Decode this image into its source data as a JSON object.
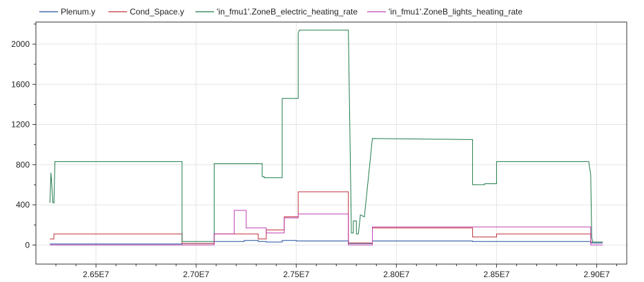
{
  "chart_data": {
    "type": "line",
    "title": "",
    "xlabel": "",
    "ylabel": "",
    "xlim": [
      26200000,
      29150000
    ],
    "ylim": [
      -190,
      2220
    ],
    "grid": true,
    "legend_position": "top",
    "x_ticks": [
      {
        "value": 26500000,
        "label": "2.65E7"
      },
      {
        "value": 27000000,
        "label": "2.70E7"
      },
      {
        "value": 27500000,
        "label": "2.75E7"
      },
      {
        "value": 28000000,
        "label": "2.80E7"
      },
      {
        "value": 28500000,
        "label": "2.85E7"
      },
      {
        "value": 29000000,
        "label": "2.90E7"
      }
    ],
    "y_ticks": [
      {
        "value": 0,
        "label": "0"
      },
      {
        "value": 400,
        "label": "400"
      },
      {
        "value": 800,
        "label": "800"
      },
      {
        "value": 1200,
        "label": "1200"
      },
      {
        "value": 1600,
        "label": "1600"
      },
      {
        "value": 2000,
        "label": "2000"
      }
    ],
    "series": [
      {
        "name": "Plenum.y",
        "color": "#1f4e9c",
        "x": [
          26270000,
          26930000,
          26930000,
          27090000,
          27090000,
          27240000,
          27240000,
          27310000,
          27310000,
          27350000,
          27350000,
          27430000,
          27430000,
          27500000,
          27500000,
          27760000,
          27760000,
          27880000,
          27880000,
          28380000,
          28380000,
          28970000,
          28970000,
          29030000
        ],
        "y": [
          10,
          10,
          15,
          15,
          35,
          35,
          45,
          45,
          35,
          35,
          30,
          30,
          45,
          45,
          40,
          40,
          15,
          15,
          40,
          40,
          35,
          35,
          20,
          20
        ]
      },
      {
        "name": "Cond_Space.y",
        "color": "#c0303a",
        "x": [
          26270000,
          26290000,
          26290000,
          26930000,
          26930000,
          27090000,
          27090000,
          27310000,
          27310000,
          27350000,
          27350000,
          27440000,
          27440000,
          27510000,
          27510000,
          27760000,
          27760000,
          27880000,
          27880000,
          28380000,
          28380000,
          28500000,
          28500000,
          28970000,
          28970000,
          29030000
        ],
        "y": [
          60,
          60,
          110,
          110,
          15,
          15,
          110,
          110,
          60,
          60,
          150,
          150,
          280,
          280,
          530,
          530,
          20,
          20,
          170,
          170,
          80,
          80,
          110,
          110,
          30,
          30
        ]
      },
      {
        "name": "'in_fmu1'.ZoneB_electric_heating_rate",
        "color": "#1e7a4a",
        "x": [
          26270000,
          26275000,
          26285000,
          26290000,
          26295000,
          26305000,
          26930000,
          26930000,
          27090000,
          27090000,
          27330000,
          27330000,
          27340000,
          27340000,
          27430000,
          27430000,
          27510000,
          27510000,
          27515000,
          27755000,
          27760000,
          27775000,
          27775000,
          27785000,
          27785000,
          27800000,
          27800000,
          27810000,
          27820000,
          27840000,
          27880000,
          27880000,
          28360000,
          28380000,
          28380000,
          28440000,
          28440000,
          28500000,
          28500000,
          28960000,
          28970000,
          28975000,
          28980000,
          29030000
        ],
        "y": [
          420,
          720,
          420,
          420,
          830,
          830,
          830,
          35,
          35,
          810,
          810,
          680,
          680,
          670,
          670,
          1460,
          1460,
          2110,
          2140,
          2140,
          2140,
          160,
          120,
          120,
          240,
          240,
          110,
          110,
          300,
          280,
          1060,
          1060,
          1050,
          1050,
          600,
          600,
          610,
          610,
          830,
          830,
          700,
          80,
          30,
          30
        ]
      },
      {
        "name": "'in_fmu1'.ZoneB_lights_heating_rate",
        "color": "#c040b0",
        "x": [
          26270000,
          26930000,
          26930000,
          27090000,
          27090000,
          27190000,
          27190000,
          27250000,
          27250000,
          27350000,
          27350000,
          27440000,
          27440000,
          27510000,
          27510000,
          27760000,
          27760000,
          27880000,
          27880000,
          28970000,
          28970000,
          29030000
        ],
        "y": [
          0,
          0,
          0,
          0,
          110,
          110,
          345,
          345,
          170,
          170,
          120,
          120,
          270,
          270,
          310,
          310,
          0,
          0,
          180,
          180,
          0,
          0
        ]
      }
    ]
  }
}
